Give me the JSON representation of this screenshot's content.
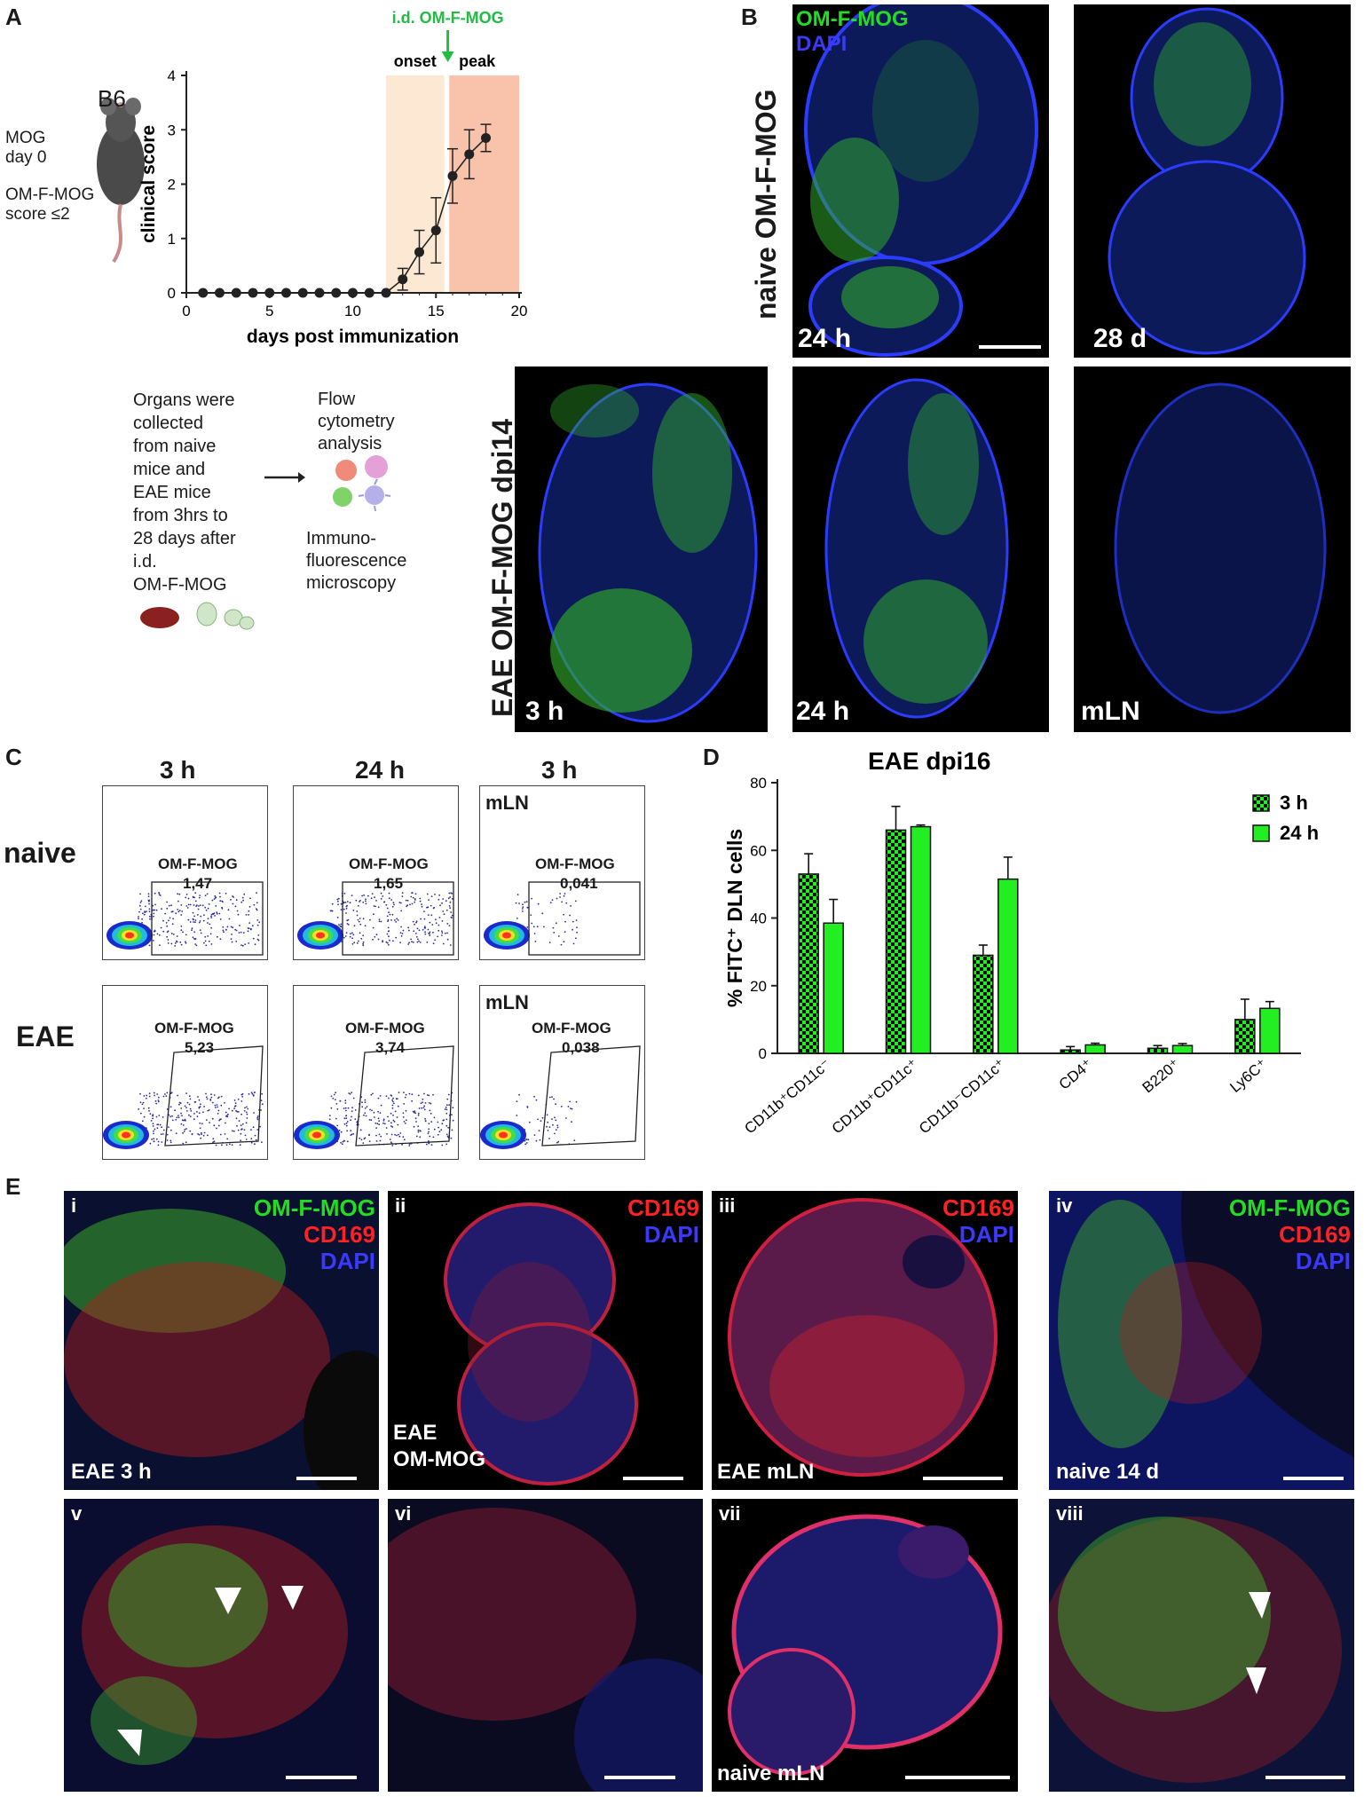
{
  "panels": {
    "A": "A",
    "B": "B",
    "C": "C",
    "D": "D",
    "E": "E"
  },
  "panel_a": {
    "mouse_label": "B6",
    "protocol_line1": "MOG",
    "protocol_line2": "day 0",
    "protocol_line3": "OM-F-MOG",
    "protocol_line4": "score ≤2",
    "injection_label": "i.d. OM-F-MOG",
    "onset_label": "onset",
    "peak_label": "peak",
    "workflow_lines": [
      "Organs were",
      "collected",
      "from naive",
      "mice and",
      "EAE mice",
      "from 3hrs to",
      "28 days after",
      "i.d.",
      "OM-F-MOG"
    ],
    "analysis_lines_1": [
      "Flow",
      "cytometry",
      "analysis"
    ],
    "analysis_lines_2": [
      "Immuno-",
      "fluorescence",
      "microscopy"
    ],
    "colors": {
      "onset_band": "#fde9d3",
      "peak_band": "#f9c2ab",
      "arrow": "#22bb44"
    }
  },
  "panel_b": {
    "row1_title": "naive OM-F-MOG",
    "row2_title": "EAE OM-F-MOG dpi14",
    "legend_green": "OM-F-MOG",
    "legend_blue": "DAPI",
    "images": [
      "24 h",
      "28 d",
      "3 h",
      "24 h",
      "mLN"
    ]
  },
  "panel_c": {
    "col_headers": [
      "3 h",
      "24 h",
      "3 h"
    ],
    "row_labels": [
      "naive",
      "EAE"
    ],
    "mln_label": "mLN",
    "gate_name": "OM-F-MOG",
    "naive_values": [
      "1,47",
      "1,65",
      "0,041"
    ],
    "eae_values": [
      "5,23",
      "3,74",
      "0,038"
    ]
  },
  "panel_e": {
    "channels": {
      "green": "OM-F-MOG",
      "red": "CD169",
      "blue": "DAPI"
    },
    "roman": [
      "i",
      "ii",
      "iii",
      "iv",
      "v",
      "vi",
      "vii",
      "viii"
    ],
    "labels": {
      "i": "EAE 3 h",
      "ii_1": "EAE",
      "ii_2": "OM-MOG",
      "iii": "EAE mLN",
      "iv": "naive 14 d",
      "vii": "naive mLN"
    }
  },
  "chart_data": [
    {
      "type": "line",
      "panel": "A",
      "xlabel": "days post immunization",
      "ylabel": "clinical score",
      "xlim": [
        0,
        20
      ],
      "ylim": [
        0,
        4
      ],
      "xticks": [
        0,
        5,
        10,
        15,
        20
      ],
      "yticks": [
        0,
        1,
        2,
        3,
        4
      ],
      "onset_band": [
        12,
        15.5
      ],
      "peak_band": [
        15.8,
        20
      ],
      "x": [
        1,
        2,
        3,
        4,
        5,
        6,
        7,
        8,
        9,
        10,
        11,
        12,
        13,
        14,
        15,
        16,
        17,
        18
      ],
      "y": [
        0,
        0,
        0,
        0,
        0,
        0,
        0,
        0,
        0,
        0,
        0,
        0,
        0.25,
        0.75,
        1.15,
        2.15,
        2.55,
        2.85
      ],
      "err": [
        0,
        0,
        0,
        0,
        0,
        0,
        0,
        0,
        0,
        0,
        0,
        0,
        0.2,
        0.4,
        0.6,
        0.5,
        0.45,
        0.25
      ]
    },
    {
      "type": "bar",
      "panel": "D",
      "title": "EAE dpi16",
      "ylabel": "% FITC⁺ DLN cells",
      "ylim": [
        0,
        80
      ],
      "yticks": [
        0,
        20,
        40,
        60,
        80
      ],
      "categories": [
        "CD11b⁺CD11c⁻",
        "CD11b⁺CD11c⁺",
        "CD11b⁻CD11c⁺",
        "CD4⁺",
        "B220⁺",
        "Ly6C⁺"
      ],
      "series": [
        {
          "name": "3 h",
          "values": [
            53,
            66,
            29,
            1,
            1.5,
            10
          ],
          "err": [
            6,
            7,
            3,
            1,
            0.8,
            6
          ]
        },
        {
          "name": "24 h",
          "values": [
            38.5,
            67,
            51.5,
            2.5,
            2.3,
            13.3
          ],
          "err": [
            7,
            0.5,
            6.5,
            0.5,
            0.6,
            2
          ]
        }
      ],
      "colors": {
        "bar": "#22ee22",
        "edge": "#111111"
      },
      "legend": "top-right"
    }
  ]
}
